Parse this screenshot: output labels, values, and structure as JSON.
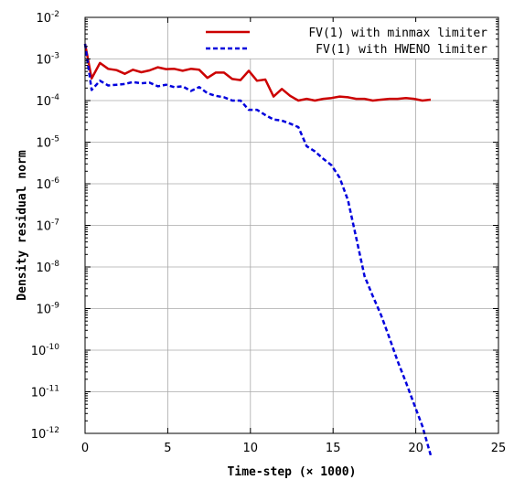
{
  "chart_data": {
    "type": "line",
    "title": "",
    "xlabel": "Time-step (× 1000)",
    "ylabel": "Density residual norm",
    "xlim": [
      0,
      25
    ],
    "ylim_log10": [
      -12,
      -2
    ],
    "yscale": "log",
    "grid": true,
    "legend_position": "top-right",
    "x_ticks": [
      0,
      5,
      10,
      15,
      20,
      25
    ],
    "y_ticks": [
      {
        "base": "10",
        "exp": "-2"
      },
      {
        "base": "10",
        "exp": "-3"
      },
      {
        "base": "10",
        "exp": "-4"
      },
      {
        "base": "10",
        "exp": "-5"
      },
      {
        "base": "10",
        "exp": "-6"
      },
      {
        "base": "10",
        "exp": "-7"
      },
      {
        "base": "10",
        "exp": "-8"
      },
      {
        "base": "10",
        "exp": "-9"
      },
      {
        "base": "10",
        "exp": "-10"
      },
      {
        "base": "10",
        "exp": "-11"
      },
      {
        "base": "10",
        "exp": "-12"
      }
    ],
    "series": [
      {
        "name": "FV(1) with minmax limiter",
        "color": "#cc0000",
        "dash": "solid",
        "x": [
          0,
          0.4,
          0.9,
          1.4,
          1.9,
          2.4,
          2.9,
          3.4,
          3.9,
          4.4,
          4.9,
          5.4,
          5.9,
          6.4,
          6.9,
          7.4,
          7.9,
          8.4,
          8.9,
          9.4,
          9.9,
          10.4,
          10.9,
          11.4,
          11.9,
          12.4,
          12.9,
          13.4,
          13.9,
          14.4,
          14.9,
          15.4,
          15.9,
          16.4,
          16.9,
          17.4,
          17.9,
          18.4,
          18.9,
          19.4,
          19.9,
          20.4,
          20.9
        ],
        "y": [
          0.0023,
          0.00034,
          0.0008,
          0.00058,
          0.00054,
          0.00044,
          0.00055,
          0.00048,
          0.00053,
          0.00063,
          0.00057,
          0.00058,
          0.00052,
          0.00058,
          0.00055,
          0.00035,
          0.00047,
          0.00047,
          0.00033,
          0.00031,
          0.00052,
          0.0003,
          0.00032,
          0.000125,
          0.00019,
          0.00013,
          0.0001,
          0.00011,
          0.0001,
          0.00011,
          0.000115,
          0.000125,
          0.00012,
          0.00011,
          0.00011,
          0.0001,
          0.000105,
          0.00011,
          0.00011,
          0.000115,
          0.00011,
          0.0001,
          0.000105
        ]
      },
      {
        "name": "FV(1) with HWENO limiter",
        "color": "#0000dd",
        "dash": "dashed",
        "x": [
          0,
          0.4,
          0.9,
          1.4,
          1.9,
          2.4,
          2.9,
          3.4,
          3.9,
          4.4,
          4.9,
          5.4,
          5.9,
          6.4,
          6.9,
          7.4,
          7.9,
          8.4,
          8.9,
          9.4,
          9.9,
          10.4,
          10.9,
          11.4,
          11.9,
          12.4,
          12.9,
          13.4,
          13.9,
          14.4,
          14.9,
          15.4,
          15.9,
          16.4,
          16.9,
          17.4,
          17.9,
          18.4,
          18.9,
          19.4,
          19.9,
          20.4,
          20.9
        ],
        "y": [
          0.0023,
          0.00018,
          0.0003,
          0.00023,
          0.00024,
          0.00025,
          0.00028,
          0.00026,
          0.00027,
          0.00022,
          0.00024,
          0.00021,
          0.00022,
          0.00017,
          0.00021,
          0.00015,
          0.00013,
          0.00012,
          0.0001,
          0.0001,
          6e-05,
          6e-05,
          4.5e-05,
          3.5e-05,
          3.3e-05,
          2.8e-05,
          2.3e-05,
          8e-06,
          6e-06,
          4e-06,
          2.8e-06,
          1.4e-06,
          4e-07,
          5e-08,
          6e-09,
          2e-09,
          7e-10,
          2e-10,
          5.5e-11,
          1.7e-11,
          5e-12,
          1.5e-12,
          3e-13
        ]
      }
    ]
  }
}
